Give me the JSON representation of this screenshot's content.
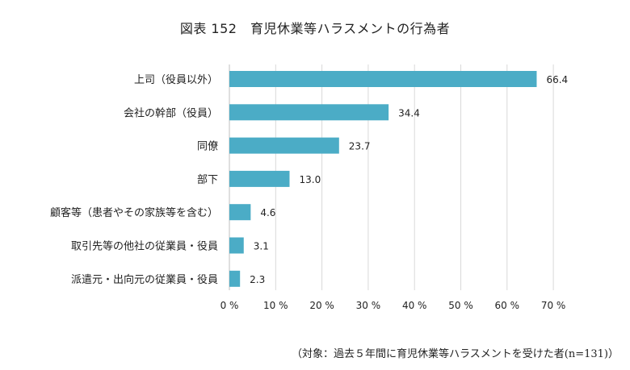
{
  "title": "図表 152　育児休業等ハラスメントの行為者",
  "note": "（対象：過去５年間に育児休業等ハラスメントを受けた者(n=131)）",
  "chart_data": {
    "type": "bar",
    "orientation": "horizontal",
    "categories": [
      "上司（役員以外）",
      "会社の幹部（役員）",
      "同僚",
      "部下",
      "顧客等（患者やその家族等を含む）",
      "取引先等の他社の従業員・役員",
      "派遣元・出向元の従業員・役員"
    ],
    "values": [
      66.4,
      34.4,
      23.7,
      13.0,
      4.6,
      3.1,
      2.3
    ],
    "value_labels": [
      "66.4",
      "34.4",
      "23.7",
      "13.0",
      "4.6",
      "3.1",
      "2.3"
    ],
    "xlim": [
      0,
      70
    ],
    "xticks": [
      "0 %",
      "10 %",
      "20 %",
      "30 %",
      "40 %",
      "50 %",
      "60 %",
      "70 %"
    ],
    "grid": true,
    "bar_color": "#4bacc6",
    "grid_color": "#d9d9d9"
  }
}
